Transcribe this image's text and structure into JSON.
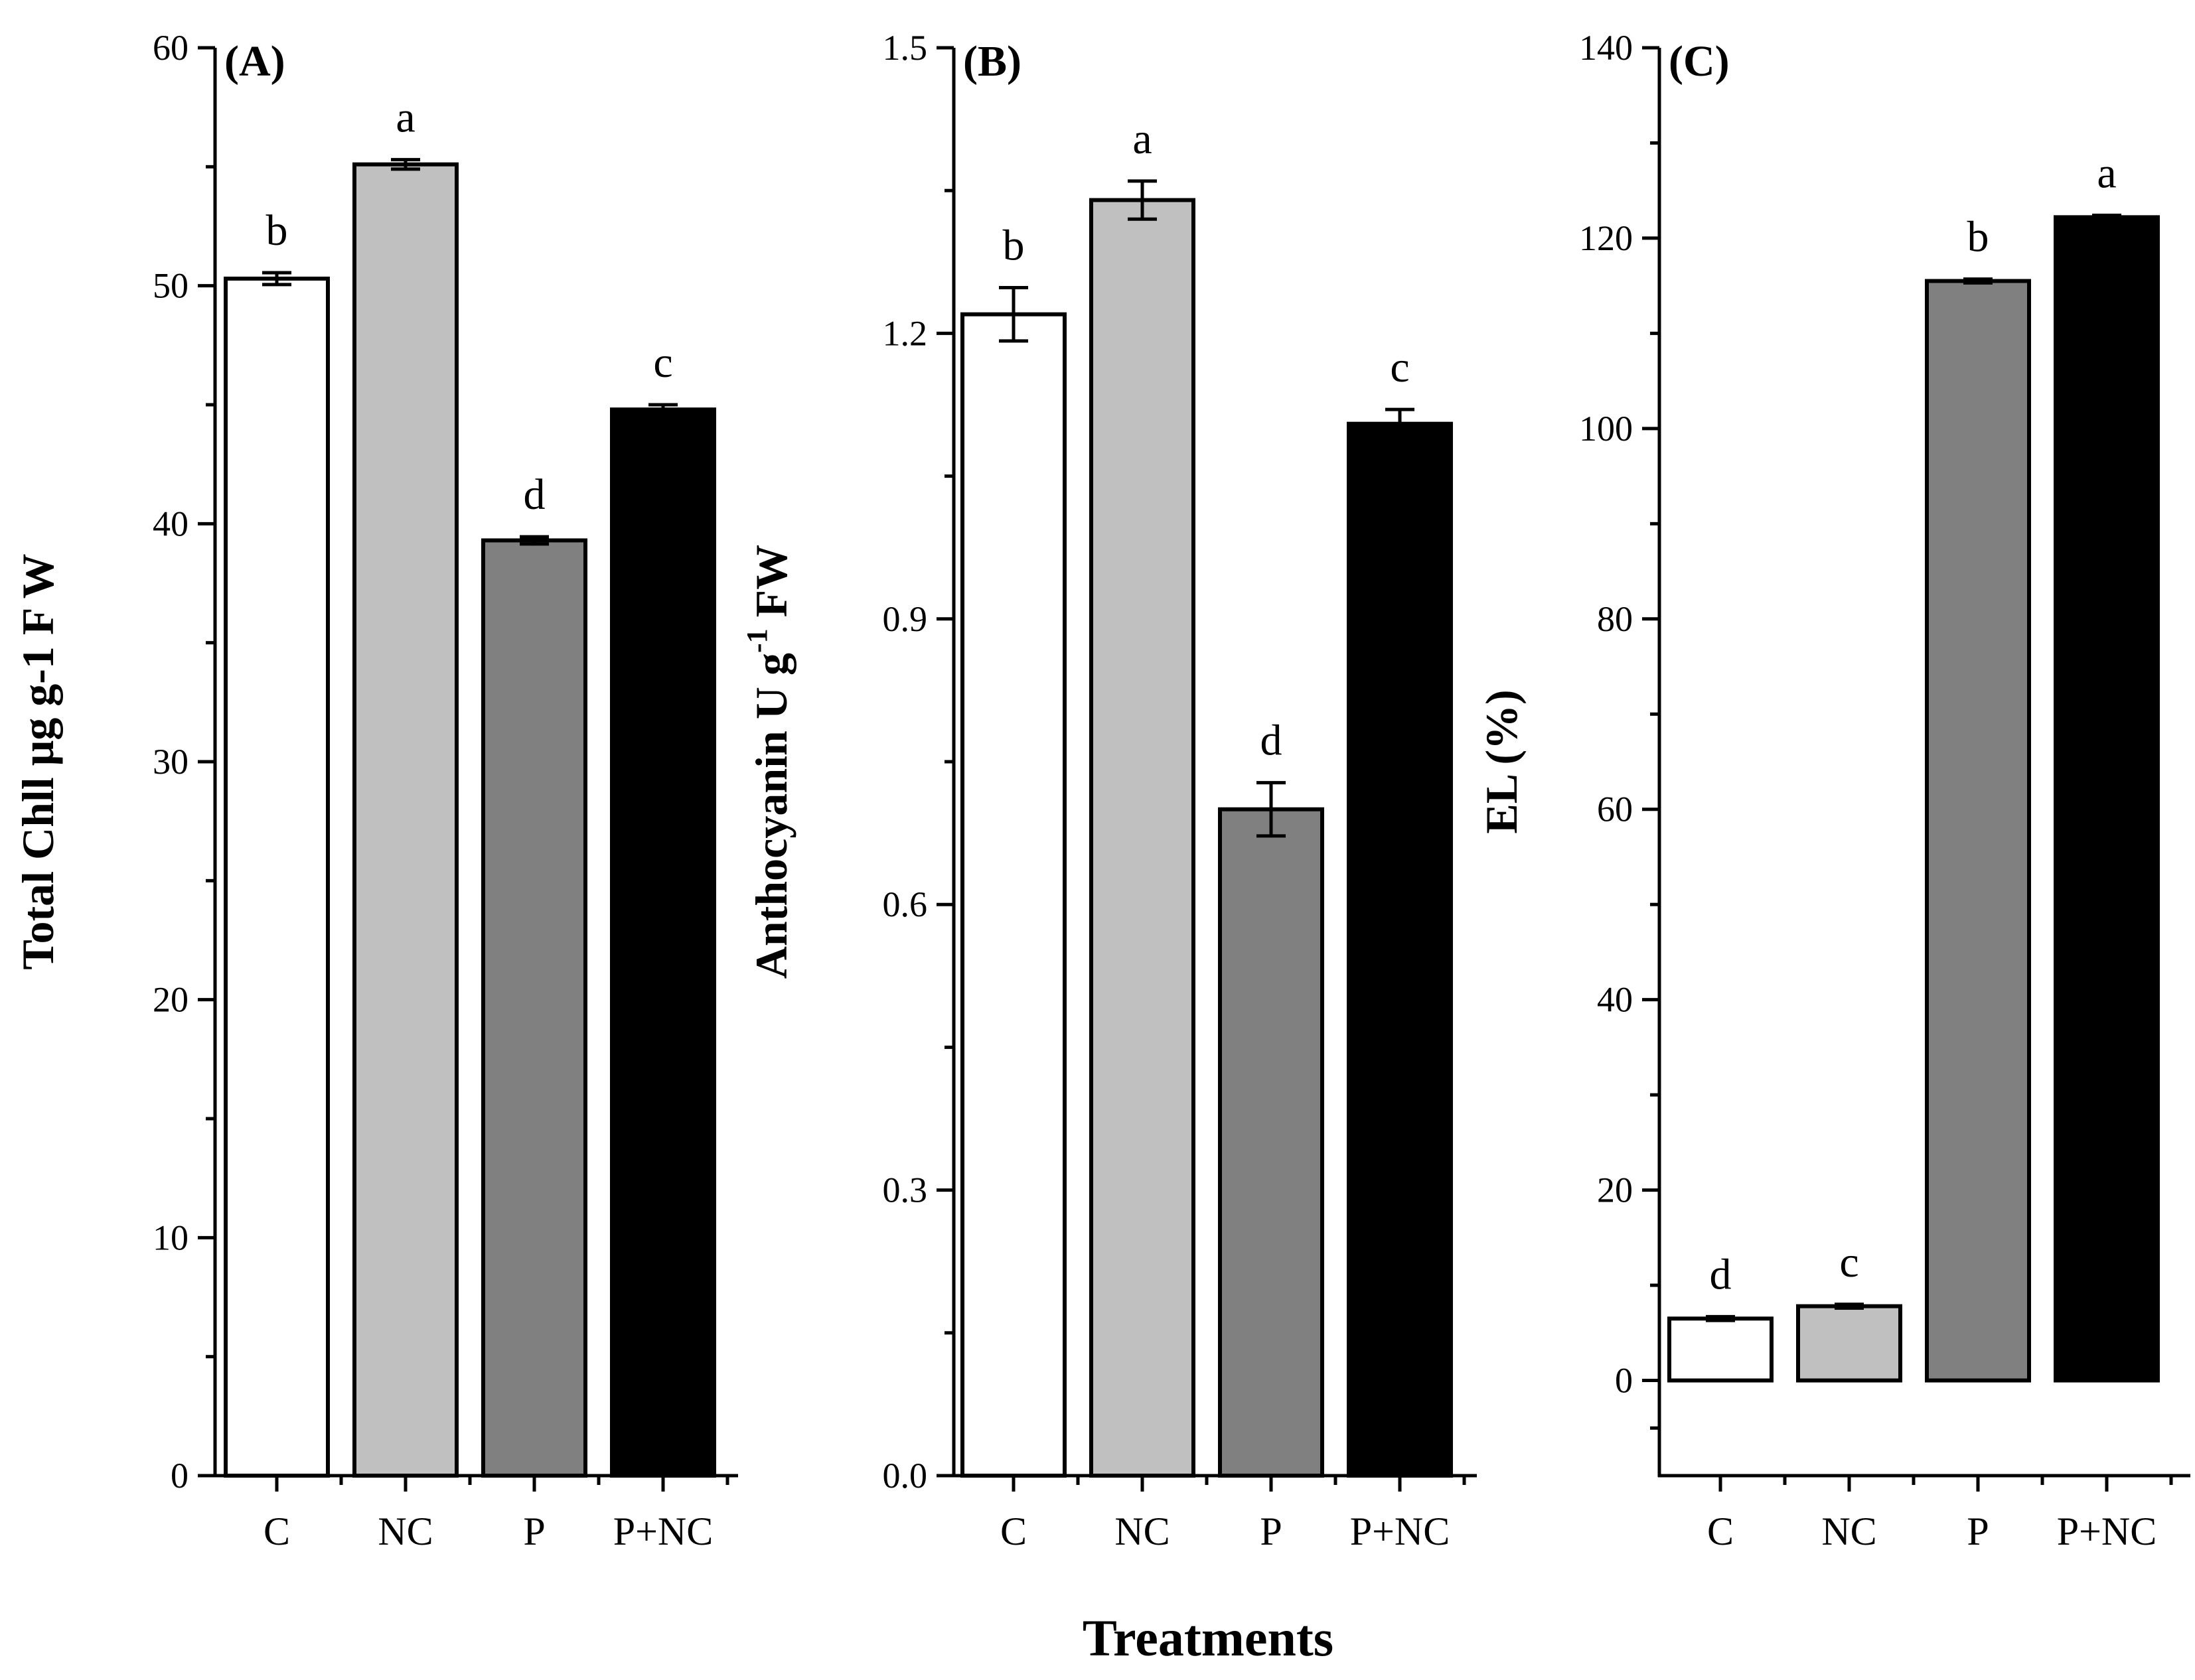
{
  "figure": {
    "xlabel": "Treatments"
  },
  "chart_data": [
    {
      "type": "bar",
      "panel": "(A)",
      "categories": [
        "C",
        "NC",
        "P",
        "P+NC"
      ],
      "values": [
        50.3,
        55.1,
        39.3,
        44.8
      ],
      "errors": [
        0.25,
        0.2,
        0.15,
        0.2
      ],
      "letters": [
        "b",
        "a",
        "d",
        "c"
      ],
      "ylabel": "Total Chll  μg g-1 F W",
      "ylim": [
        0,
        60
      ],
      "yticks": [
        0,
        10,
        20,
        30,
        40,
        50,
        60
      ],
      "ytick_labels": [
        "0",
        "10",
        "20",
        "30",
        "40",
        "50",
        "60"
      ],
      "colors": [
        "#ffffff",
        "#c0c0c0",
        "#808080",
        "#000000"
      ]
    },
    {
      "type": "bar",
      "panel": "(B)",
      "categories": [
        "C",
        "NC",
        "P",
        "P+NC"
      ],
      "values": [
        1.22,
        1.34,
        0.7,
        1.105
      ],
      "errors": [
        0.028,
        0.02,
        0.028,
        0.015
      ],
      "letters": [
        "b",
        "a",
        "d",
        "c"
      ],
      "ylabel_main": "Anthocyanin U g",
      "ylabel_sup": "-1",
      "ylabel_end": " FW",
      "ylim": [
        0,
        1.5
      ],
      "yticks": [
        0,
        0.3,
        0.6,
        0.9,
        1.2,
        1.5
      ],
      "ytick_labels": [
        "0.0",
        "0.3",
        "0.6",
        "0.9",
        "1.2",
        "1.5"
      ],
      "colors": [
        "#ffffff",
        "#c0c0c0",
        "#808080",
        "#000000"
      ]
    },
    {
      "type": "bar",
      "panel": "(C)",
      "categories": [
        "C",
        "NC",
        "P",
        "P+NC"
      ],
      "values": [
        6.5,
        7.8,
        115.5,
        122.2
      ],
      "errors": [
        0.2,
        0.2,
        0.2,
        0.2
      ],
      "letters": [
        "d",
        "c",
        "b",
        "a"
      ],
      "ylabel": "EL (%)",
      "ylim": [
        -10,
        140
      ],
      "yticks": [
        0,
        20,
        40,
        60,
        80,
        100,
        120,
        140
      ],
      "ytick_labels": [
        "0",
        "20",
        "40",
        "60",
        "80",
        "100",
        "120",
        "140"
      ],
      "colors": [
        "#ffffff",
        "#c0c0c0",
        "#808080",
        "#000000"
      ]
    }
  ]
}
